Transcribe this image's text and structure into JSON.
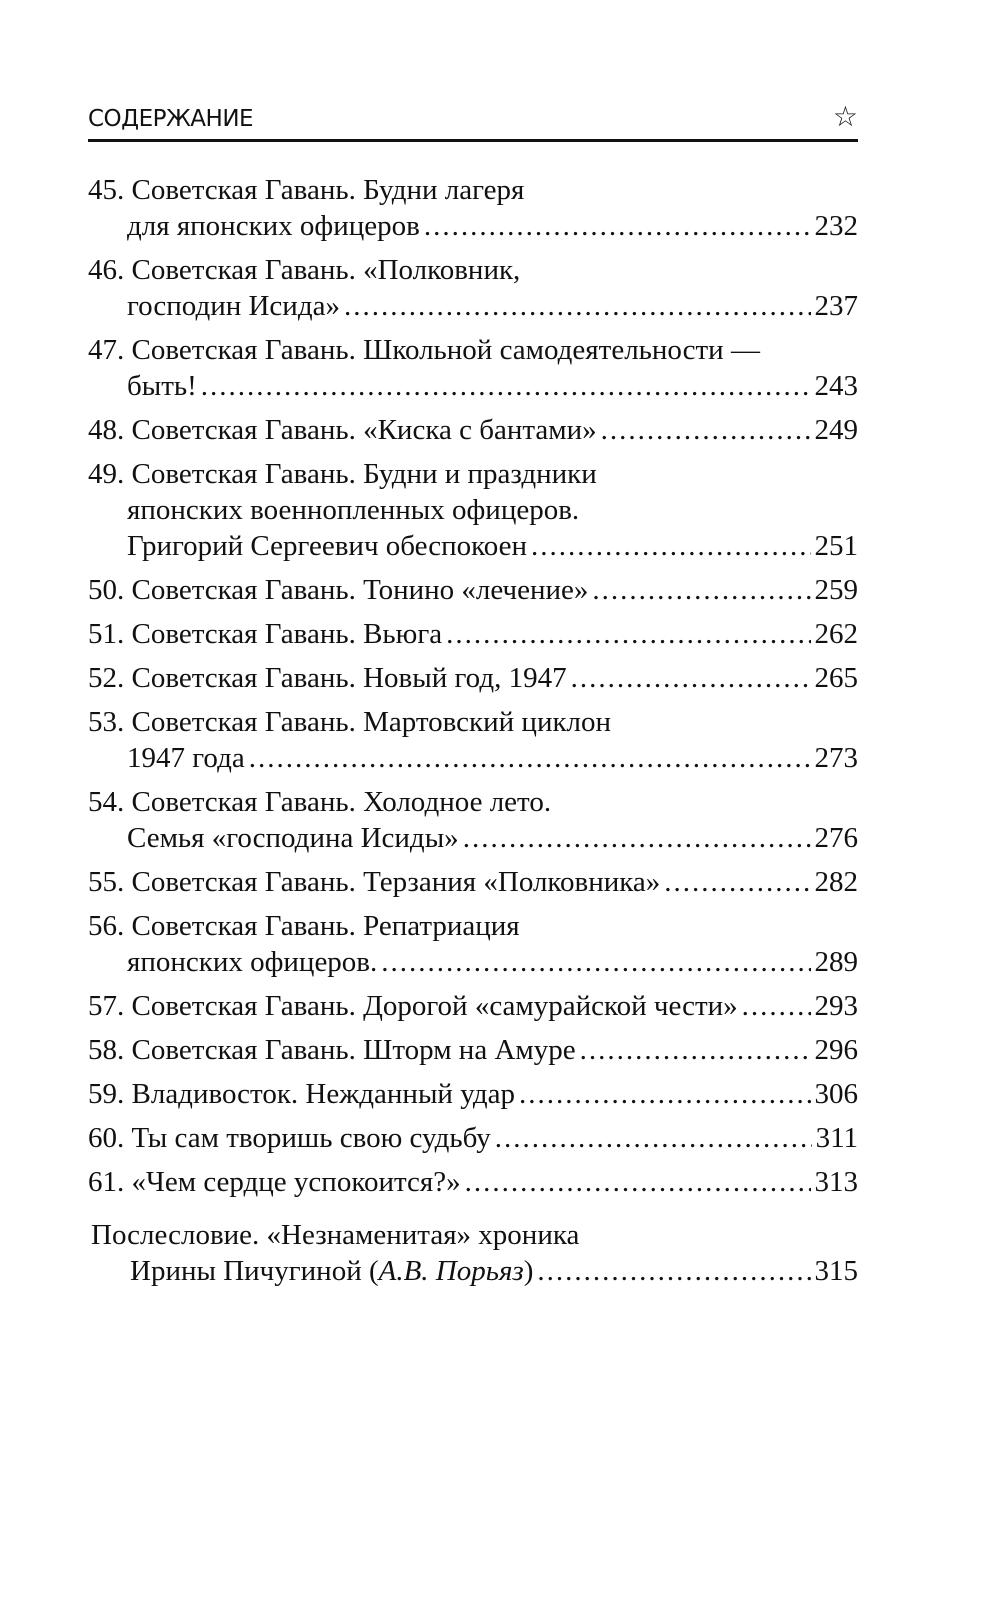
{
  "header": {
    "title": "СОДЕРЖАНИЕ",
    "icon": "star-outline-icon"
  },
  "entries": [
    {
      "lines": [
        "45. Советская Гавань. Будни лагеря",
        "для японских офицеров"
      ],
      "page": "232"
    },
    {
      "lines": [
        "46. Советская Гавань. «Полковник,",
        "господин Исида»"
      ],
      "page": "237"
    },
    {
      "lines": [
        "47. Советская Гавань. Школьной самодеятельности —",
        "быть!"
      ],
      "page": "243"
    },
    {
      "lines": [
        "48. Советская Гавань. «Киска с бантами»"
      ],
      "page": "249"
    },
    {
      "lines": [
        "49. Советская Гавань. Будни и праздники",
        "японских военнопленных офицеров.",
        "Григорий Сергеевич обеспокоен"
      ],
      "page": "251"
    },
    {
      "lines": [
        "50. Советская Гавань. Тонино «лечение»"
      ],
      "page": "259"
    },
    {
      "lines": [
        "51. Советская Гавань. Вьюга"
      ],
      "page": "262"
    },
    {
      "lines": [
        "52. Советская Гавань. Новый год, 1947"
      ],
      "page": "265"
    },
    {
      "lines": [
        "53. Советская Гавань. Мартовский циклон",
        "1947 года"
      ],
      "page": "273"
    },
    {
      "lines": [
        "54. Советская Гавань. Холодное лето.",
        "Семья «господина Исиды»"
      ],
      "page": "276"
    },
    {
      "lines": [
        "55. Советская Гавань. Терзания «Полковника»"
      ],
      "page": "282"
    },
    {
      "lines": [
        "56. Советская Гавань. Репатриация",
        "японских офицеров."
      ],
      "page": "289"
    },
    {
      "lines": [
        "57. Советская Гавань. Дорогой «самурайской чести»"
      ],
      "page": "293"
    },
    {
      "lines": [
        "58. Советская Гавань. Шторм на Амуре"
      ],
      "page": "296"
    },
    {
      "lines": [
        "59. Владивосток. Нежданный удар"
      ],
      "page": "306"
    },
    {
      "lines": [
        "60. Ты сам творишь свою судьбу"
      ],
      "page": "311"
    },
    {
      "lines": [
        "61. «Чем сердце успокоится?»"
      ],
      "page": "313"
    }
  ],
  "afterword": {
    "line1": "Послесловие. «Незнаменитая» хроника",
    "line2_prefix": "Ирины Пичугиной (",
    "line2_author": "А.В. Порьяз",
    "line2_suffix": ")",
    "page": "315"
  }
}
